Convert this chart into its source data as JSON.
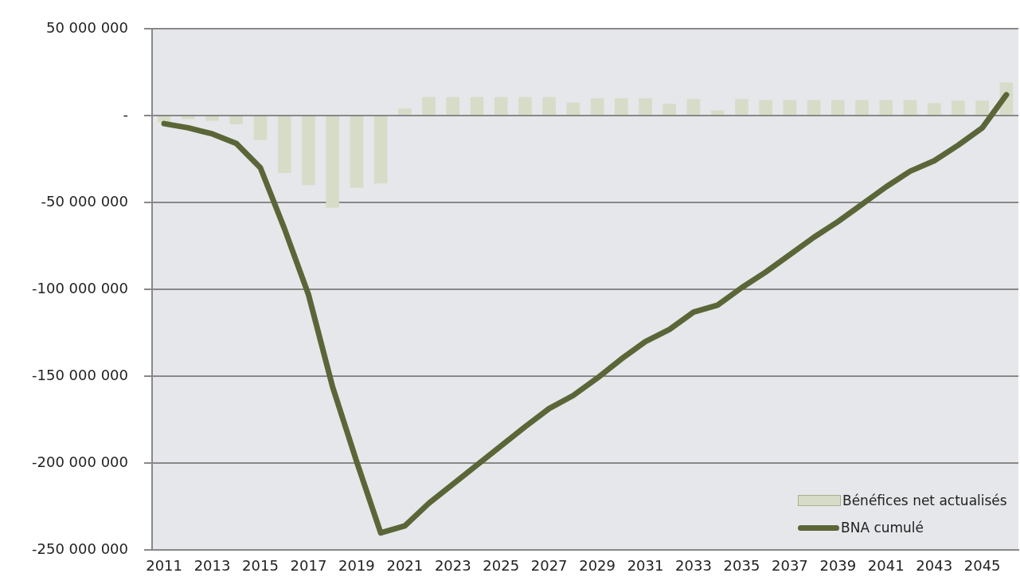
{
  "chart_data": {
    "type": "bar",
    "categories": [
      "2011",
      null,
      "2013",
      null,
      "2015",
      null,
      "2017",
      null,
      "2019",
      null,
      "2021",
      null,
      "2023",
      null,
      "2025",
      null,
      "2027",
      null,
      "2029",
      null,
      "2031",
      null,
      "2033",
      null,
      "2035",
      null,
      "2037",
      null,
      "2039",
      null,
      "2041",
      null,
      "2043",
      null,
      "2045",
      null
    ],
    "series": [
      {
        "name": "Bénéfices net actualisés",
        "color": "#d6dcc8",
        "values": [
          -4000000,
          -2000000,
          -3000000,
          -5000000,
          -14000000,
          -33000000,
          -40000000,
          -53000000,
          -41500000,
          -39000000,
          4000000,
          10700000,
          10700000,
          10700000,
          10700000,
          10700000,
          10700000,
          7500000,
          10000000,
          10000000,
          10000000,
          6800000,
          9500000,
          3000000,
          9500000,
          9000000,
          9000000,
          9000000,
          9000000,
          9000000,
          9000000,
          9000000,
          7300000,
          8600000,
          8600000,
          19000000
        ]
      },
      {
        "name": "BNA cumulé",
        "type": "line",
        "color": "#5a6638",
        "values": [
          -4600000,
          -7000000,
          -10500000,
          -16000000,
          -30000000,
          -65000000,
          -103000000,
          -156000000,
          -199000000,
          -240000000,
          -236000000,
          -223000000,
          -212000000,
          -201000000,
          -190000000,
          -179000000,
          -168500000,
          -161000000,
          -151000000,
          -140000000,
          -130000000,
          -123000000,
          -113000000,
          -109000000,
          -99000000,
          -90000000,
          -80000000,
          -70000000,
          -61000000,
          -51000000,
          -41000000,
          -32000000,
          -26000000,
          -17000000,
          -7000000,
          12000000
        ]
      }
    ],
    "ylim": [
      -250000000,
      50000000
    ],
    "yticks": [
      {
        "value": -250000000,
        "label": "-250 000 000"
      },
      {
        "value": -200000000,
        "label": "-200 000 000"
      },
      {
        "value": -150000000,
        "label": "-150 000 000"
      },
      {
        "value": -100000000,
        "label": "-100 000 000"
      },
      {
        "value": -50000000,
        "label": "-50 000 000"
      },
      {
        "value": 0,
        "label": "-"
      },
      {
        "value": 50000000,
        "label": "50 000 000"
      }
    ],
    "grid": "y",
    "legend": "bottom right",
    "marker": "none",
    "line_style": "solid"
  }
}
